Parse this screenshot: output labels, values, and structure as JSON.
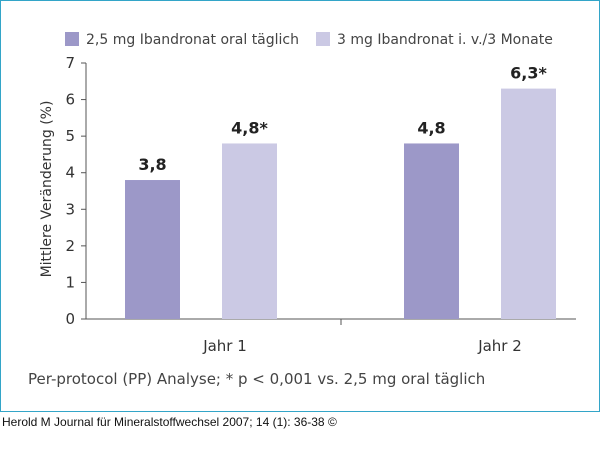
{
  "chart_data": {
    "type": "bar",
    "categories": [
      "Jahr 1",
      "Jahr 2"
    ],
    "series": [
      {
        "name": "2,5 mg Ibandronat oral täglich",
        "color": "#9c98c8",
        "values": [
          3.8,
          4.8
        ],
        "labels": [
          "3,8",
          "4,8"
        ]
      },
      {
        "name": "3 mg Ibandronat i. v./3 Monate",
        "color": "#cbc9e4",
        "values": [
          4.8,
          6.3
        ],
        "labels": [
          "4,8*",
          "6,3*"
        ]
      }
    ],
    "ylabel": "Mittlere Veränderung (%)",
    "xlabel": "",
    "ylim": [
      0,
      7
    ],
    "yticks": [
      "0",
      "1",
      "2",
      "3",
      "4",
      "5",
      "6",
      "7"
    ],
    "footnote": "Per-protocol (PP) Analyse; * p < 0,001 vs. 2,5 mg oral täglich"
  },
  "caption": "Herold M Journal für Mineralstoffwechsel 2007; 14 (1): 36-38 ©",
  "colors": {
    "frame": "#33a5c8",
    "axis": "#555555"
  }
}
